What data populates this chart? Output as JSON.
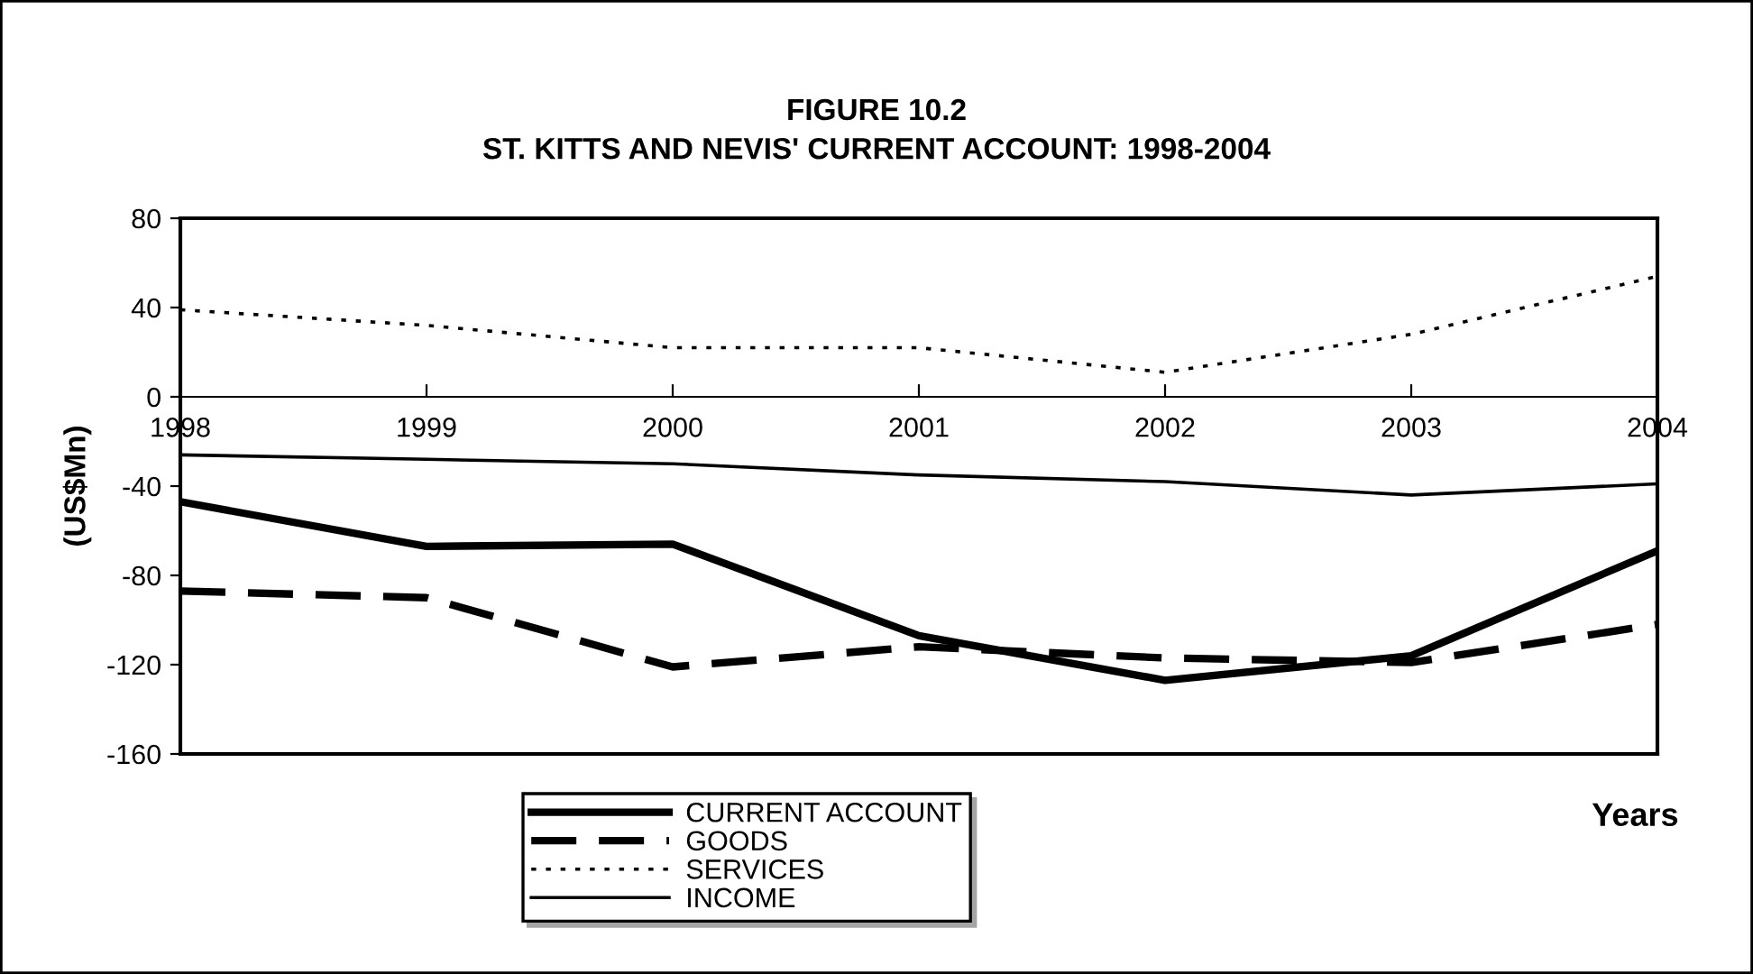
{
  "chart_data": {
    "type": "line",
    "title": "FIGURE 10.2\nST. KITTS AND NEVIS' CURRENT ACCOUNT: 1998-2004",
    "xlabel": "Years",
    "ylabel": "(US$Mn)",
    "categories": [
      "1998",
      "1999",
      "2000",
      "2001",
      "2002",
      "2003",
      "2004"
    ],
    "series": [
      {
        "name": "CURRENT ACCOUNT",
        "color": "#000000",
        "line_style": "solid",
        "values": [
          -47,
          -67,
          -66,
          -107,
          -127,
          -116,
          -69
        ]
      },
      {
        "name": "GOODS",
        "color": "#000000",
        "line_style": "dashed",
        "values": [
          -87,
          -90,
          -121,
          -112,
          -117,
          -119,
          -102
        ]
      },
      {
        "name": "SERVICES",
        "color": "#000000",
        "line_style": "dotted",
        "values": [
          39,
          32,
          22,
          22,
          11,
          28,
          54
        ]
      },
      {
        "name": "INCOME",
        "color": "#000000",
        "line_style": "solid",
        "values": [
          -26,
          -28,
          -30,
          -35,
          -38,
          -44,
          -39
        ]
      }
    ],
    "ylim": [
      -160,
      80
    ],
    "yticks": [
      -160,
      -120,
      -80,
      -40,
      0,
      40,
      80
    ],
    "grid": false,
    "legend": "bottom",
    "marker": "none"
  }
}
